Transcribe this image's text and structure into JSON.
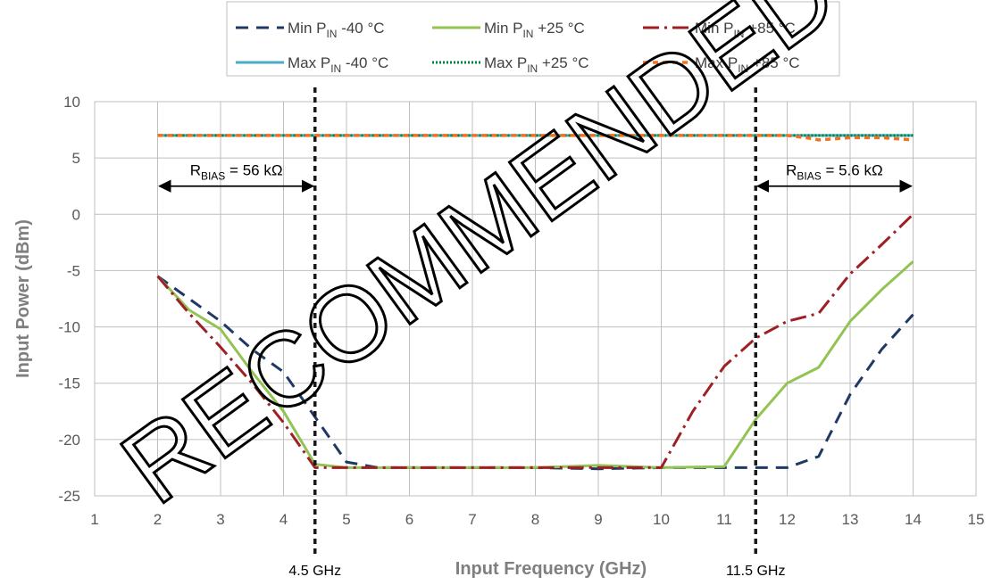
{
  "chart_data": {
    "type": "line",
    "title": "",
    "xlabel": "Input Frequency (GHz)",
    "ylabel": "Input Power (dBm)",
    "xlim": [
      1,
      15
    ],
    "ylim": [
      -25,
      10
    ],
    "x_ticks": [
      1,
      2,
      3,
      4,
      5,
      6,
      7,
      8,
      9,
      10,
      11,
      12,
      13,
      14,
      15
    ],
    "y_ticks": [
      10,
      5,
      0,
      -5,
      -10,
      -15,
      -20,
      -25
    ],
    "grid": true,
    "legend_position": "top",
    "series": [
      {
        "name": "Min P_IN -40 °C",
        "name_main": "Min P",
        "name_sub": "IN",
        "name_suffix": " -40 °C",
        "color": "#1f3864",
        "dash": "14,9",
        "width": 3,
        "x": [
          2,
          2.5,
          3,
          3.5,
          4,
          4.5,
          5,
          5.5,
          6,
          7,
          8,
          9,
          10,
          11,
          11.5,
          12,
          12.5,
          13,
          13.5,
          14
        ],
        "y": [
          -5.5,
          -7.5,
          -9.5,
          -12,
          -14,
          -18,
          -22,
          -22.5,
          -22.5,
          -22.5,
          -22.5,
          -22.6,
          -22.5,
          -22.5,
          -22.5,
          -22.5,
          -21.5,
          -16,
          -12,
          -8.9
        ]
      },
      {
        "name": "Min P_IN +25 °C",
        "name_main": "Min P",
        "name_sub": "IN",
        "name_suffix": " +25 °C",
        "color": "#92c353",
        "dash": "",
        "width": 3,
        "x": [
          2,
          2.5,
          3,
          3.5,
          4,
          4.5,
          5,
          6,
          7,
          8,
          9,
          10,
          11,
          11.5,
          12,
          12.5,
          13,
          13.5,
          14
        ],
        "y": [
          -5.5,
          -8.5,
          -10.2,
          -14,
          -17.5,
          -22.2,
          -22.5,
          -22.5,
          -22.5,
          -22.5,
          -22.3,
          -22.5,
          -22.4,
          -18.2,
          -15,
          -13.6,
          -9.5,
          -6.7,
          -4.2
        ]
      },
      {
        "name": "Min P_IN +85 °C",
        "name_main": "Min P",
        "name_sub": "IN",
        "name_suffix": " +85 °C",
        "color": "#9e1f24",
        "dash": "18,6,3,6",
        "width": 3,
        "x": [
          2,
          2.5,
          3,
          3.5,
          4,
          4.5,
          5,
          6,
          7,
          8,
          9,
          10,
          10.5,
          11,
          11.5,
          12,
          12.5,
          13,
          13.5,
          14
        ],
        "y": [
          -5.5,
          -8.8,
          -11.8,
          -15,
          -18.5,
          -22.5,
          -22.5,
          -22.5,
          -22.5,
          -22.5,
          -22.5,
          -22.5,
          -17.5,
          -13.5,
          -11,
          -9.5,
          -8.8,
          -5.3,
          -2.7,
          0
        ]
      },
      {
        "name": "Max P_IN -40 °C",
        "name_main": "Max P",
        "name_sub": "IN",
        "name_suffix": " -40 °C",
        "color": "#4bacc6",
        "dash": "",
        "width": 3,
        "x": [
          2,
          3,
          4,
          5,
          6,
          7,
          8,
          9,
          10,
          11,
          12,
          13,
          14
        ],
        "y": [
          7,
          7,
          7,
          7,
          7,
          7,
          7,
          7,
          7,
          7,
          7,
          7,
          7
        ]
      },
      {
        "name": "Max P_IN +25 °C",
        "name_main": "Max P",
        "name_sub": "IN",
        "name_suffix": " +25 °C",
        "color": "#00843d",
        "dash": "2,2",
        "width": 3,
        "x": [
          2,
          3,
          4,
          5,
          6,
          7,
          8,
          9,
          10,
          11,
          12,
          13,
          14
        ],
        "y": [
          7,
          7,
          7,
          7,
          7,
          7,
          7,
          7,
          7,
          7,
          7,
          7,
          7
        ]
      },
      {
        "name": "Max P_IN +85 °C",
        "name_main": "Max P",
        "name_sub": "IN",
        "name_suffix": " +85 °C",
        "color": "#f37021",
        "dash": "6,5",
        "width": 3.5,
        "x": [
          2,
          3,
          4,
          5,
          6,
          7,
          8,
          9,
          10,
          11,
          12,
          12.3,
          12.5,
          13,
          13.5,
          14
        ],
        "y": [
          7,
          7,
          7,
          7,
          7,
          7,
          7,
          7,
          7,
          7,
          7,
          6.8,
          6.6,
          6.8,
          6.8,
          6.6
        ]
      }
    ],
    "vertical_markers": [
      {
        "x": 4.5,
        "label": "4.5 GHz"
      },
      {
        "x": 11.5,
        "label": "11.5 GHz"
      }
    ],
    "annotations": [
      {
        "id": "left",
        "from_x": 2,
        "to_x": 4.5,
        "y": 2.5,
        "label_main": "R",
        "label_sub": "BIAS",
        "label_rest": " = 56 kΩ"
      },
      {
        "id": "right",
        "from_x": 11.5,
        "to_x": 14,
        "y": 2.5,
        "label_main": "R",
        "label_sub": "BIAS",
        "label_rest": " = 5.6 kΩ"
      }
    ],
    "watermark": "RECOMMENDED"
  }
}
